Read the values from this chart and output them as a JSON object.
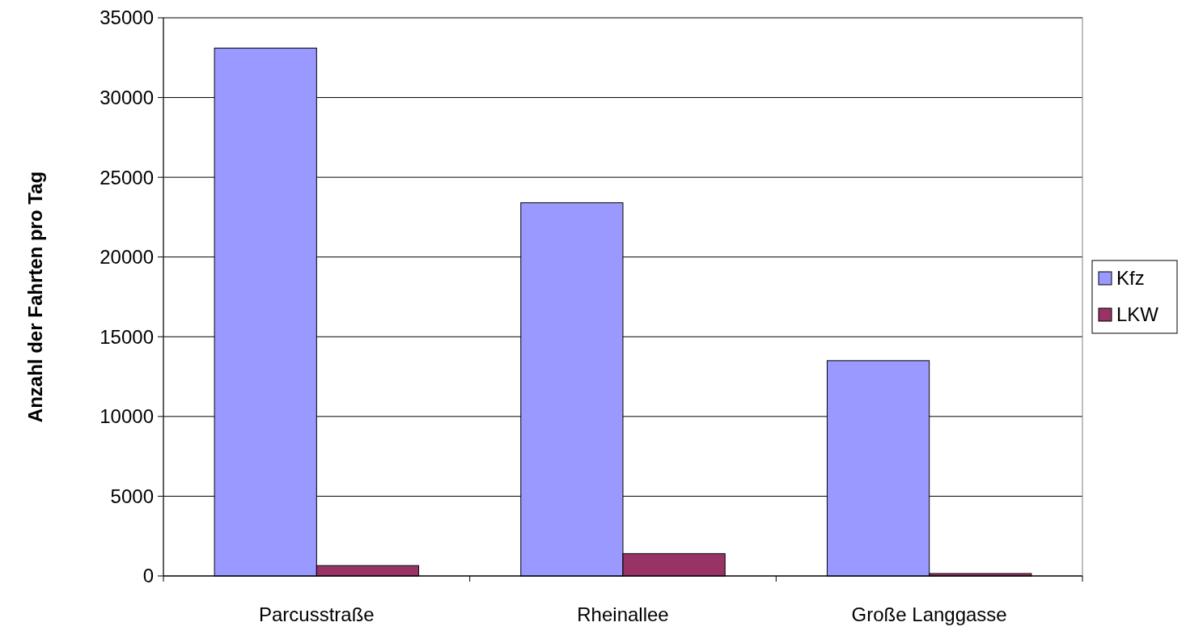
{
  "chart_data": {
    "type": "bar",
    "ylabel": "Anzahl der Fahrten pro Tag",
    "categories": [
      "Parcusstraße",
      "Rheinallee",
      "Große Langgasse"
    ],
    "series": [
      {
        "name": "Kfz",
        "color": "#9999ff",
        "values": [
          33100,
          23400,
          13500
        ]
      },
      {
        "name": "LKW",
        "color": "#993366",
        "values": [
          650,
          1400,
          150
        ]
      }
    ],
    "ylim": [
      0,
      35000
    ],
    "yticks": [
      0,
      5000,
      10000,
      15000,
      20000,
      25000,
      30000,
      35000
    ],
    "grid": "y",
    "legend": "right"
  }
}
